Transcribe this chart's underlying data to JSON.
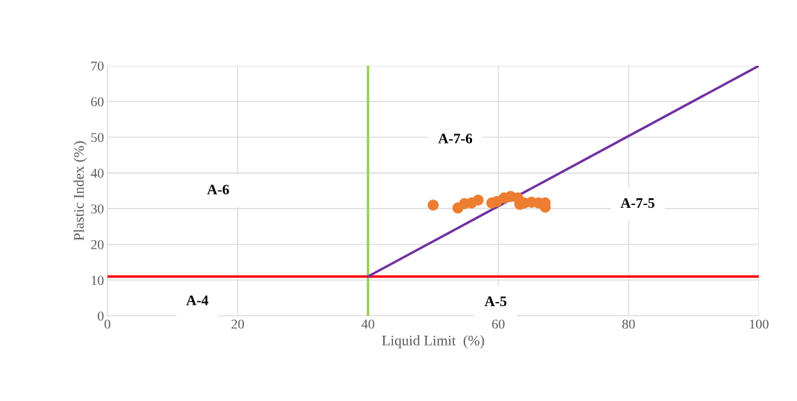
{
  "chart_data": {
    "type": "scatter",
    "xlabel": "Liquid Limit  (%)",
    "ylabel": "Plastic Index (%)",
    "xlim": [
      0,
      100
    ],
    "xticks": [
      0,
      20,
      40,
      60,
      80,
      100
    ],
    "ylim": [
      0,
      70
    ],
    "yticks": [
      0,
      10,
      20,
      30,
      40,
      50,
      60,
      70
    ],
    "grid": true,
    "marker": "circle",
    "series": [
      {
        "color": "#ed7d31",
        "x": [
          50.0,
          53.8,
          54.8,
          55.9,
          56.9,
          59.0,
          59.8,
          60.9,
          61.9,
          63.0,
          63.3,
          64.0,
          65.1,
          66.2,
          67.2,
          67.2
        ],
        "values": [
          31.0,
          30.2,
          31.4,
          31.6,
          32.4,
          31.6,
          32.0,
          33.0,
          33.4,
          33.0,
          31.2,
          31.6,
          31.8,
          31.6,
          30.4,
          31.6
        ]
      },
      {
        "type": "line",
        "color": "#7030a0",
        "x": [
          40,
          100
        ],
        "values": [
          11,
          70
        ],
        "marker": "none"
      }
    ],
    "ref_lines": [
      {
        "axis": "x",
        "value": 40,
        "color": "#92d050"
      },
      {
        "axis": "y",
        "value": 11,
        "color": "#ff0000"
      }
    ],
    "annotations": [
      "A-6",
      "A-7-6",
      "A-7-5",
      "A-4",
      "A-5"
    ]
  }
}
